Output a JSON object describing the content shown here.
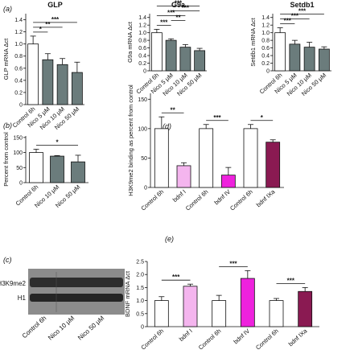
{
  "chart_data": [
    {
      "id": "a1",
      "panel_label": "(a)",
      "type": "bar",
      "title": "GLP",
      "ylabel": "GLP mRNA Δct",
      "categories": [
        "Control 6h",
        "Nico 5 μM",
        "Nico 10 μM",
        "Nico 50 μM"
      ],
      "values": [
        1.0,
        0.74,
        0.66,
        0.53
      ],
      "errors": [
        0.13,
        0.1,
        0.1,
        0.17
      ],
      "colors": [
        "#ffffff",
        "#6b7c7c",
        "#6b7c7c",
        "#6b7c7c"
      ],
      "ylim": [
        0,
        1.5
      ],
      "yticks": [
        0,
        0.2,
        0.4,
        0.6,
        0.8,
        1.0,
        1.2,
        1.4
      ],
      "ytick_labels": [
        "0",
        "0.2",
        "0.4",
        "0.6",
        "0.8",
        "1.0",
        "1.2",
        "1.4"
      ],
      "significance": [
        {
          "from": 0,
          "to": 1,
          "label": "*"
        },
        {
          "from": 0,
          "to": 2,
          "label": "**"
        },
        {
          "from": 0,
          "to": 3,
          "label": "***"
        }
      ]
    },
    {
      "id": "a2",
      "type": "bar",
      "title": "G9a",
      "ylabel": "G9a mRNA Δct",
      "categories": [
        "Control 6h",
        "Nico 5 μM",
        "Nico 10 μM",
        "Nico 50 μM"
      ],
      "values": [
        1.0,
        0.8,
        0.62,
        0.53
      ],
      "errors": [
        0.09,
        0.04,
        0.07,
        0.06
      ],
      "colors": [
        "#ffffff",
        "#6b7c7c",
        "#6b7c7c",
        "#6b7c7c"
      ],
      "ylim": [
        0,
        1.5
      ],
      "yticks": [
        0,
        0.2,
        0.4,
        0.6,
        0.8,
        1.0,
        1.2,
        1.4
      ],
      "ytick_labels": [
        "0",
        "0.2",
        "0.4",
        "0.6",
        "0.8",
        "1.0",
        "1.2",
        "1.4"
      ],
      "significance": [
        {
          "from": 0,
          "to": 1,
          "label": "***"
        },
        {
          "from": 1,
          "to": 2,
          "label": "**"
        },
        {
          "from": 0,
          "to": 2,
          "label": "***"
        },
        {
          "from": 1,
          "to": 3,
          "label": "***"
        },
        {
          "from": 0,
          "to": 3,
          "label": "***"
        }
      ]
    },
    {
      "id": "a3",
      "type": "bar",
      "title": "Setdb1",
      "ylabel": "Setdb1 mRNA Δct",
      "categories": [
        "Control 6h",
        "Nico 5 μM",
        "Nico 10 μM",
        "Nico 50 μM"
      ],
      "values": [
        1.0,
        0.7,
        0.62,
        0.57
      ],
      "errors": [
        0.13,
        0.1,
        0.13,
        0.06
      ],
      "colors": [
        "#ffffff",
        "#6b7c7c",
        "#6b7c7c",
        "#6b7c7c"
      ],
      "ylim": [
        0,
        1.5
      ],
      "yticks": [
        0,
        0.2,
        0.4,
        0.6,
        0.8,
        1.0,
        1.2,
        1.4
      ],
      "ytick_labels": [
        "0",
        "0.2",
        "0.4",
        "0.6",
        "0.8",
        "1.0",
        "1.2",
        "1.4"
      ],
      "significance": [
        {
          "from": 0,
          "to": 1,
          "label": "***"
        },
        {
          "from": 0,
          "to": 2,
          "label": "***"
        },
        {
          "from": 0,
          "to": 3,
          "label": "***"
        }
      ]
    },
    {
      "id": "b",
      "panel_label": "(b)",
      "type": "bar",
      "title": "",
      "ylabel": "Percent from control",
      "categories": [
        "Control 6h",
        "Nico 10 μM",
        "Nico 50 μM"
      ],
      "values": [
        100,
        88,
        69
      ],
      "errors": [
        11,
        2,
        22
      ],
      "colors": [
        "#ffffff",
        "#6b7c7c",
        "#6b7c7c"
      ],
      "ylim": [
        0,
        155
      ],
      "yticks": [
        0,
        50,
        100,
        150
      ],
      "ytick_labels": [
        "0",
        "50",
        "100",
        "150"
      ],
      "significance": [
        {
          "from": 0,
          "to": 2,
          "label": "*"
        }
      ]
    },
    {
      "id": "d",
      "panel_label": "(d)",
      "type": "bar",
      "title": "",
      "ylabel": "H3K9me2 binding as percent from control",
      "categories": [
        "Control 6h",
        "bdnf I",
        "Control 6h",
        "bdnf IV",
        "Control 6h",
        "bdnf IXa"
      ],
      "values": [
        100,
        37,
        100,
        21,
        100,
        77
      ],
      "errors": [
        20,
        5,
        7,
        13,
        7,
        4
      ],
      "colors": [
        "#ffffff",
        "#f4b5ee",
        "#ffffff",
        "#ee22dd",
        "#ffffff",
        "#8a1a52"
      ],
      "ylim": [
        0,
        160
      ],
      "yticks": [
        0,
        50,
        100,
        150
      ],
      "ytick_labels": [
        "0",
        "50",
        "100",
        "150"
      ],
      "significance": [
        {
          "from": 0,
          "to": 1,
          "label": "**"
        },
        {
          "from": 2,
          "to": 3,
          "label": "***"
        },
        {
          "from": 4,
          "to": 5,
          "label": "*"
        }
      ]
    },
    {
      "id": "e",
      "panel_label": "(e)",
      "type": "bar",
      "title": "",
      "ylabel": "BDNF mRNA Δct",
      "categories": [
        "Control 6h",
        "bdnf I",
        "Control 6h",
        "bdnf IV",
        "Control 6h",
        "bdnf IXa"
      ],
      "values": [
        1.0,
        1.55,
        1.0,
        1.85,
        1.0,
        1.35
      ],
      "errors": [
        0.15,
        0.08,
        0.2,
        0.3,
        0.08,
        0.15
      ],
      "colors": [
        "#ffffff",
        "#f4b5ee",
        "#ffffff",
        "#ee22dd",
        "#ffffff",
        "#8a1a52"
      ],
      "ylim": [
        0,
        2.5
      ],
      "yticks": [
        0,
        0.5,
        1.0,
        1.5,
        2.0,
        2.5
      ],
      "ytick_labels": [
        "0",
        "0.5",
        "1.0",
        "1.5",
        "2.0",
        "2.5"
      ],
      "significance": [
        {
          "from": 0,
          "to": 1,
          "label": "***"
        },
        {
          "from": 2,
          "to": 3,
          "label": "***"
        },
        {
          "from": 4,
          "to": 5,
          "label": "***"
        }
      ]
    }
  ],
  "blot": {
    "panel_label": "(c)",
    "band_labels": [
      "H3K9me2",
      "H1"
    ],
    "lane_labels": [
      "Control 6h",
      "Nico 10 μM",
      "Nico 50 μM"
    ]
  }
}
